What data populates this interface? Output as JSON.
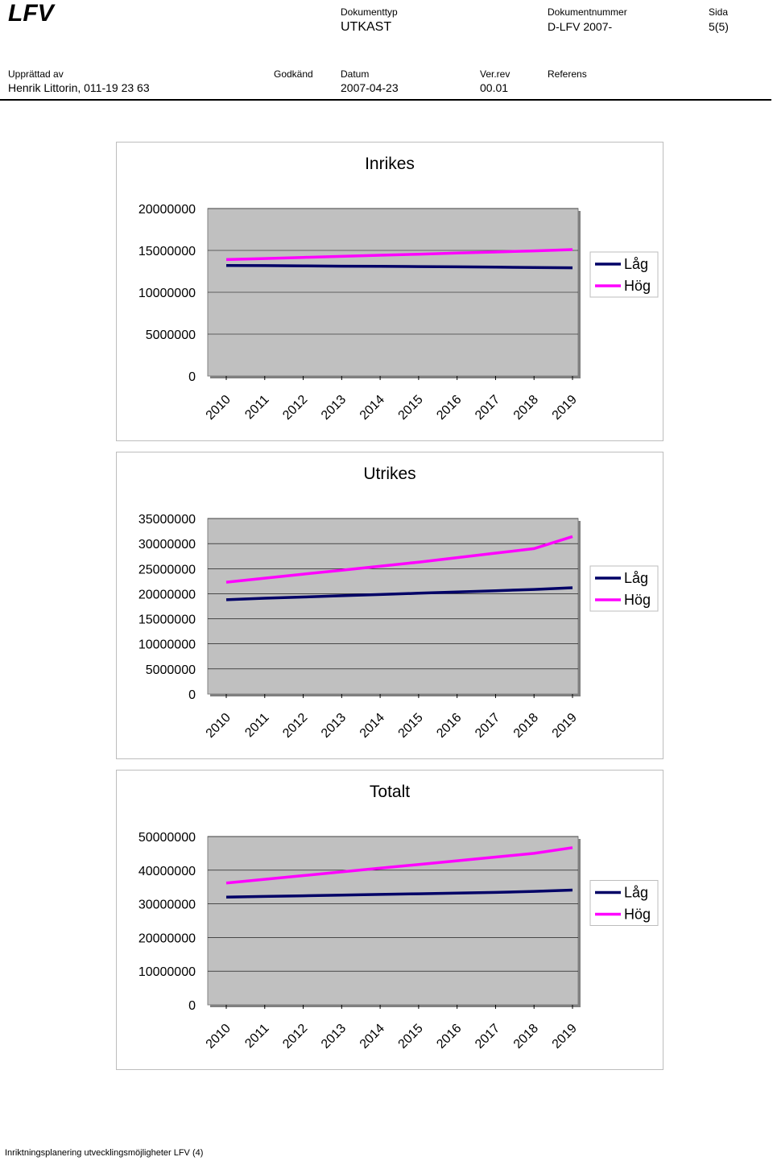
{
  "header": {
    "logo": "LFV",
    "doctype_label": "Dokumenttyp",
    "doctype_value": "UTKAST",
    "docnum_label": "Dokumentnummer",
    "docnum_value": "D-LFV 2007-",
    "page_label": "Sida",
    "page_value": "5(5)",
    "author_label": "Upprättad av",
    "author_value": "Henrik Littorin, 011-19 23 63",
    "approved_label": "Godkänd",
    "approved_value": "",
    "date_label": "Datum",
    "date_value": "2007-04-23",
    "rev_label": "Ver.rev",
    "rev_value": "00.01",
    "ref_label": "Referens",
    "ref_value": ""
  },
  "colors": {
    "low": "#000066",
    "high": "#ff00ff",
    "plot_bg": "#c0c0c0",
    "grid": "#000000"
  },
  "chart_data": [
    {
      "type": "line",
      "title": "Inrikes",
      "categories": [
        "2010",
        "2011",
        "2012",
        "2013",
        "2014",
        "2015",
        "2016",
        "2017",
        "2018",
        "2019"
      ],
      "yticks": [
        "20000000",
        "15000000",
        "10000000",
        "5000000",
        "0"
      ],
      "ylim": [
        0,
        20000000
      ],
      "legend": "right",
      "series": [
        {
          "name": "Låg",
          "values": [
            13200000,
            13180000,
            13150000,
            13120000,
            13100000,
            13070000,
            13040000,
            13000000,
            12960000,
            12920000
          ]
        },
        {
          "name": "Hög",
          "values": [
            13900000,
            14030000,
            14160000,
            14290000,
            14420000,
            14550000,
            14680000,
            14810000,
            14940000,
            15100000
          ]
        }
      ]
    },
    {
      "type": "line",
      "title": "Utrikes",
      "categories": [
        "2010",
        "2011",
        "2012",
        "2013",
        "2014",
        "2015",
        "2016",
        "2017",
        "2018",
        "2019"
      ],
      "yticks": [
        "35000000",
        "30000000",
        "25000000",
        "20000000",
        "15000000",
        "10000000",
        "5000000",
        "0"
      ],
      "ylim": [
        0,
        35000000
      ],
      "legend": "right",
      "series": [
        {
          "name": "Låg",
          "values": [
            18800000,
            19100000,
            19350000,
            19600000,
            19850000,
            20100000,
            20350000,
            20600000,
            20850000,
            21200000
          ]
        },
        {
          "name": "Hög",
          "values": [
            22300000,
            23100000,
            23900000,
            24700000,
            25500000,
            26300000,
            27200000,
            28100000,
            29000000,
            31400000
          ]
        }
      ]
    },
    {
      "type": "line",
      "title": "Totalt",
      "categories": [
        "2010",
        "2011",
        "2012",
        "2013",
        "2014",
        "2015",
        "2016",
        "2017",
        "2018",
        "2019"
      ],
      "yticks": [
        "50000000",
        "40000000",
        "30000000",
        "20000000",
        "10000000",
        "0"
      ],
      "ylim": [
        0,
        50000000
      ],
      "legend": "right",
      "series": [
        {
          "name": "Låg",
          "values": [
            32000000,
            32200000,
            32400000,
            32600000,
            32800000,
            33000000,
            33200000,
            33400000,
            33700000,
            34100000
          ]
        },
        {
          "name": "Hög",
          "values": [
            36200000,
            37300000,
            38400000,
            39500000,
            40600000,
            41700000,
            42800000,
            43900000,
            45000000,
            46700000
          ]
        }
      ]
    }
  ],
  "footer": {
    "text": "Inriktningsplanering utvecklingsmöjligheter LFV (4)"
  }
}
